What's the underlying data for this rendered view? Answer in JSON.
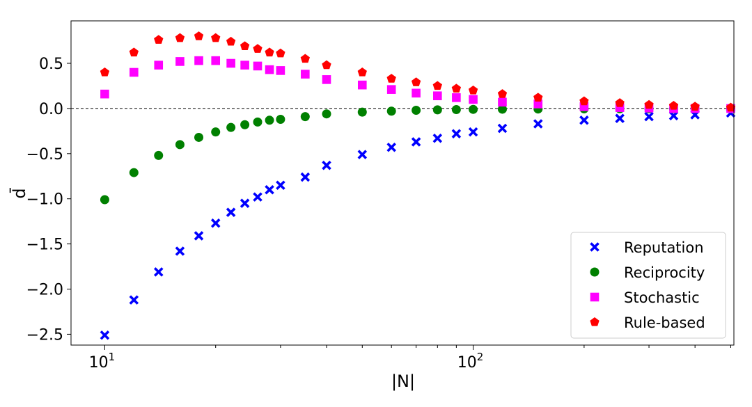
{
  "chart_data": {
    "type": "scatter",
    "x_scale": "log",
    "xlabel": "|N|",
    "ylabel": "d̄",
    "xlim": [
      8.1,
      510
    ],
    "ylim": [
      -2.62,
      0.97
    ],
    "x_ticks": [
      {
        "value": 10,
        "base": "10",
        "exp": "1"
      },
      {
        "value": 100,
        "base": "10",
        "exp": "2"
      }
    ],
    "y_ticks": [
      {
        "value": 0.5,
        "label": "0.5"
      },
      {
        "value": 0.0,
        "label": "0.0"
      },
      {
        "value": -0.5,
        "label": "−0.5"
      },
      {
        "value": -1.0,
        "label": "−1.0"
      },
      {
        "value": -1.5,
        "label": "−1.5"
      },
      {
        "value": -2.0,
        "label": "−2.0"
      },
      {
        "value": -2.5,
        "label": "−2.5"
      }
    ],
    "reference_line": {
      "y": 0.0,
      "style": "dashed",
      "color": "#000000"
    },
    "x": [
      10,
      12,
      14,
      16,
      18,
      20,
      22,
      24,
      26,
      28,
      30,
      35,
      40,
      50,
      60,
      70,
      80,
      90,
      100,
      120,
      150,
      200,
      250,
      300,
      350,
      400,
      500
    ],
    "series": [
      {
        "name": "Reputation",
        "marker": "x",
        "color": "#0000ff",
        "values": [
          -2.51,
          -2.12,
          -1.81,
          -1.58,
          -1.41,
          -1.27,
          -1.15,
          -1.05,
          -0.98,
          -0.9,
          -0.85,
          -0.76,
          -0.63,
          -0.51,
          -0.43,
          -0.37,
          -0.33,
          -0.28,
          -0.26,
          -0.22,
          -0.17,
          -0.13,
          -0.11,
          -0.09,
          -0.08,
          -0.07,
          -0.05
        ]
      },
      {
        "name": "Reciprocity",
        "marker": "circle",
        "color": "#008000",
        "values": [
          -1.01,
          -0.71,
          -0.52,
          -0.4,
          -0.32,
          -0.26,
          -0.21,
          -0.18,
          -0.15,
          -0.13,
          -0.12,
          -0.09,
          -0.06,
          -0.04,
          -0.03,
          -0.02,
          -0.015,
          -0.012,
          -0.01,
          -0.008,
          -0.006,
          -0.004,
          -0.003,
          -0.002,
          -0.002,
          -0.001,
          -0.001
        ]
      },
      {
        "name": "Stochastic",
        "marker": "square",
        "color": "#ff00ff",
        "values": [
          0.16,
          0.4,
          0.48,
          0.52,
          0.53,
          0.53,
          0.5,
          0.48,
          0.47,
          0.43,
          0.42,
          0.38,
          0.32,
          0.26,
          0.21,
          0.17,
          0.14,
          0.12,
          0.1,
          0.07,
          0.05,
          0.02,
          0.01,
          0.005,
          0.0,
          0.0,
          0.0
        ]
      },
      {
        "name": "Rule-based",
        "marker": "pentagon",
        "color": "#ff0000",
        "values": [
          0.4,
          0.62,
          0.76,
          0.78,
          0.8,
          0.78,
          0.74,
          0.69,
          0.66,
          0.62,
          0.61,
          0.55,
          0.48,
          0.4,
          0.33,
          0.29,
          0.25,
          0.22,
          0.2,
          0.16,
          0.12,
          0.08,
          0.06,
          0.04,
          0.03,
          0.02,
          0.01
        ]
      }
    ],
    "legend": {
      "position": "bottom-right"
    },
    "grid": false
  }
}
